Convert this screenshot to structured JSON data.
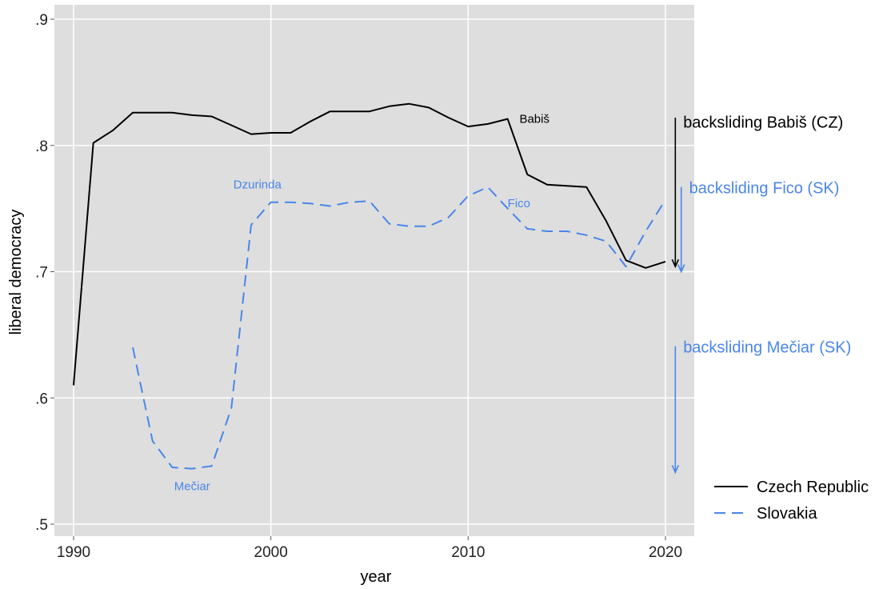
{
  "chart_data": {
    "type": "line",
    "xlabel": "year",
    "ylabel": "liberal democracy",
    "xlim": [
      1990,
      2020
    ],
    "ylim": [
      0.5,
      0.9
    ],
    "x_ticks": [
      1990,
      2000,
      2010,
      2020
    ],
    "x_tick_labels": [
      "1990",
      "2000",
      "2010",
      "2020"
    ],
    "y_ticks": [
      0.5,
      0.6,
      0.7,
      0.8,
      0.9
    ],
    "y_tick_labels": [
      ".5",
      ".6",
      ".7",
      ".8",
      ".9"
    ],
    "grid": true,
    "legend_position": "bottom-right",
    "series": [
      {
        "name": "Czech Republic",
        "color": "#000000",
        "style": "solid",
        "x": [
          1990,
          1991,
          1992,
          1993,
          1994,
          1995,
          1996,
          1997,
          1998,
          1999,
          2000,
          2001,
          2002,
          2003,
          2004,
          2005,
          2006,
          2007,
          2008,
          2009,
          2010,
          2011,
          2012,
          2013,
          2014,
          2015,
          2016,
          2017,
          2018,
          2019,
          2020
        ],
        "y": [
          0.61,
          0.802,
          0.812,
          0.826,
          0.826,
          0.826,
          0.824,
          0.823,
          0.816,
          0.809,
          0.81,
          0.81,
          0.819,
          0.827,
          0.827,
          0.827,
          0.831,
          0.833,
          0.83,
          0.822,
          0.815,
          0.817,
          0.821,
          0.777,
          0.769,
          0.768,
          0.767,
          0.74,
          0.709,
          0.703,
          0.708
        ]
      },
      {
        "name": "Slovakia",
        "color": "#4a86e8",
        "style": "dashed",
        "x": [
          1993,
          1994,
          1995,
          1996,
          1997,
          1998,
          1999,
          2000,
          2001,
          2002,
          2003,
          2004,
          2005,
          2006,
          2007,
          2008,
          2009,
          2010,
          2011,
          2012,
          2013,
          2014,
          2015,
          2016,
          2017,
          2018,
          2019,
          2020
        ],
        "y": [
          0.64,
          0.566,
          0.545,
          0.544,
          0.546,
          0.592,
          0.737,
          0.755,
          0.755,
          0.754,
          0.752,
          0.755,
          0.756,
          0.738,
          0.736,
          0.736,
          0.743,
          0.76,
          0.767,
          0.75,
          0.734,
          0.732,
          0.732,
          0.729,
          0.724,
          0.704,
          0.732,
          0.757
        ]
      }
    ],
    "annotations": [
      {
        "text": "Babiš",
        "x": 2012.6,
        "y": 0.818,
        "color": "#000000",
        "size": "small"
      },
      {
        "text": "Dzurinda",
        "x": 1998.1,
        "y": 0.766,
        "color": "#4a86e8",
        "size": "small"
      },
      {
        "text": "Fico",
        "x": 2012.0,
        "y": 0.751,
        "color": "#4a86e8",
        "size": "small"
      },
      {
        "text": "Mečiar",
        "x": 1995.1,
        "y": 0.527,
        "color": "#4a86e8",
        "size": "small"
      },
      {
        "text": "backsliding Babiš (CZ)",
        "x": 2020.9,
        "y": 0.814,
        "color": "#000000",
        "size": "large"
      },
      {
        "text": "backsliding Fico (SK)",
        "x": 2021.2,
        "y": 0.762,
        "color": "#4a86e8",
        "size": "large"
      },
      {
        "text": "backsliding Mečiar (SK)",
        "x": 2020.9,
        "y": 0.636,
        "color": "#4a86e8",
        "size": "large"
      }
    ],
    "arrows": [
      {
        "x": 2020.5,
        "y_from": 0.822,
        "y_to": 0.704,
        "color": "#000000"
      },
      {
        "x": 2020.8,
        "y_from": 0.767,
        "y_to": 0.7,
        "color": "#4a86e8"
      },
      {
        "x": 2020.5,
        "y_from": 0.641,
        "y_to": 0.541,
        "color": "#4a86e8"
      }
    ]
  }
}
